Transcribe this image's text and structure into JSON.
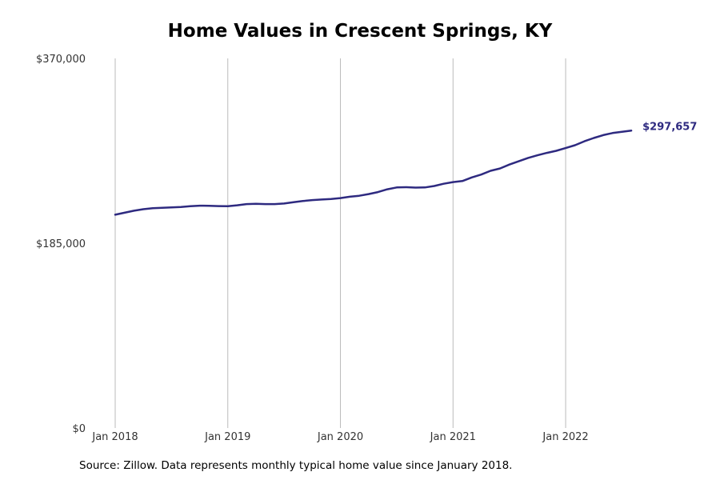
{
  "chart_data": {
    "type": "line",
    "title": "Home Values in Crescent Springs, KY",
    "xlabel": "",
    "ylabel": "",
    "ylim": [
      0,
      370000
    ],
    "yticks": [
      {
        "value": 0,
        "label": "$0"
      },
      {
        "value": 185000,
        "label": "$185,000"
      },
      {
        "value": 370000,
        "label": "$370,000"
      }
    ],
    "xticks": [
      "Jan 2018",
      "Jan 2019",
      "Jan 2020",
      "Jan 2021",
      "Jan 2022"
    ],
    "x_start": "Jan 2018",
    "x_end": "Jul 2022",
    "grid": "vertical",
    "series": [
      {
        "color": "#2e2a80",
        "end_label": "$297,657",
        "values": [
          213500,
          215500,
          217500,
          219000,
          220000,
          220500,
          220800,
          221300,
          222000,
          222600,
          222500,
          222200,
          222000,
          223000,
          224200,
          224500,
          224200,
          224200,
          224700,
          226000,
          227200,
          228200,
          228700,
          229200,
          230200,
          231500,
          232500,
          234200,
          236200,
          239000,
          240800,
          241100,
          240700,
          240800,
          242300,
          244500,
          246200,
          247200,
          250800,
          253700,
          257500,
          259800,
          263700,
          267000,
          270400,
          273000,
          275400,
          277500,
          280200,
          283100,
          287000,
          290300,
          293200,
          295300,
          296600,
          297657
        ]
      }
    ]
  },
  "footer": {
    "source": "Source: Zillow. Data represents monthly typical home value since January 2018."
  }
}
